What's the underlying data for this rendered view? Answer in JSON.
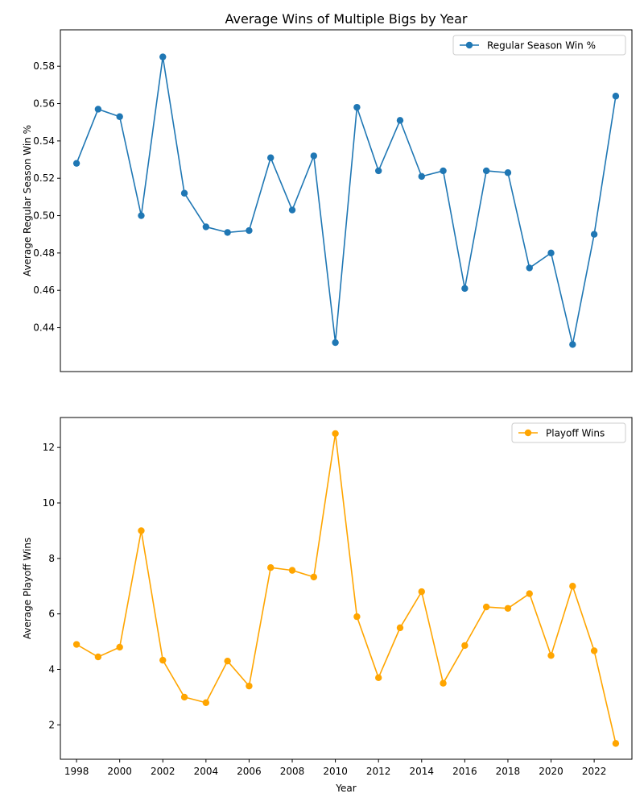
{
  "figure_title": "Average Wins of Multiple Bigs by Year",
  "chart_data": [
    {
      "type": "line",
      "title": "Average Wins of Multiple Bigs by Year",
      "xlabel": "",
      "ylabel": "Average Regular Season Win %",
      "x": [
        1998,
        1999,
        2000,
        2001,
        2002,
        2003,
        2004,
        2005,
        2006,
        2007,
        2008,
        2009,
        2010,
        2011,
        2012,
        2013,
        2014,
        2015,
        2016,
        2017,
        2018,
        2019,
        2020,
        2021,
        2022,
        2023
      ],
      "series": [
        {
          "name": "Regular Season Win %",
          "color": "#1f77b4",
          "values": [
            0.528,
            0.557,
            0.553,
            0.5,
            0.585,
            0.512,
            0.494,
            0.491,
            0.492,
            0.531,
            0.503,
            0.532,
            0.432,
            0.558,
            0.524,
            0.551,
            0.521,
            0.524,
            0.461,
            0.524,
            0.523,
            0.472,
            0.48,
            0.431,
            0.49,
            0.564
          ]
        }
      ],
      "xlim": [
        1997.25,
        2023.75
      ],
      "ylim": [
        0.4165,
        0.5995
      ],
      "yticks": [
        "0.44",
        "0.46",
        "0.48",
        "0.50",
        "0.52",
        "0.54",
        "0.56",
        "0.58"
      ],
      "show_xticks": false,
      "grid": false,
      "legend": "top-right"
    },
    {
      "type": "line",
      "title": "",
      "xlabel": "Year",
      "ylabel": "Average Playoff Wins",
      "x": [
        1998,
        1999,
        2000,
        2001,
        2002,
        2003,
        2004,
        2005,
        2006,
        2007,
        2008,
        2009,
        2010,
        2011,
        2012,
        2013,
        2014,
        2015,
        2016,
        2017,
        2018,
        2019,
        2020,
        2021,
        2022,
        2023
      ],
      "series": [
        {
          "name": "Playoff Wins",
          "color": "#ffa500",
          "values": [
            4.9,
            4.45,
            4.8,
            9.0,
            4.33,
            3.0,
            2.8,
            4.3,
            3.4,
            7.67,
            7.57,
            7.33,
            12.5,
            5.9,
            3.7,
            5.5,
            6.8,
            3.5,
            4.86,
            6.25,
            6.2,
            6.73,
            4.5,
            7.0,
            4.67,
            1.33
          ]
        }
      ],
      "xlim": [
        1997.25,
        2023.75
      ],
      "ylim": [
        0.76,
        13.08
      ],
      "yticks": [
        "2",
        "4",
        "6",
        "8",
        "10",
        "12"
      ],
      "xticks": [
        "1998",
        "2000",
        "2002",
        "2004",
        "2006",
        "2008",
        "2010",
        "2012",
        "2014",
        "2016",
        "2018",
        "2020",
        "2022"
      ],
      "grid": false,
      "legend": "top-right"
    }
  ]
}
